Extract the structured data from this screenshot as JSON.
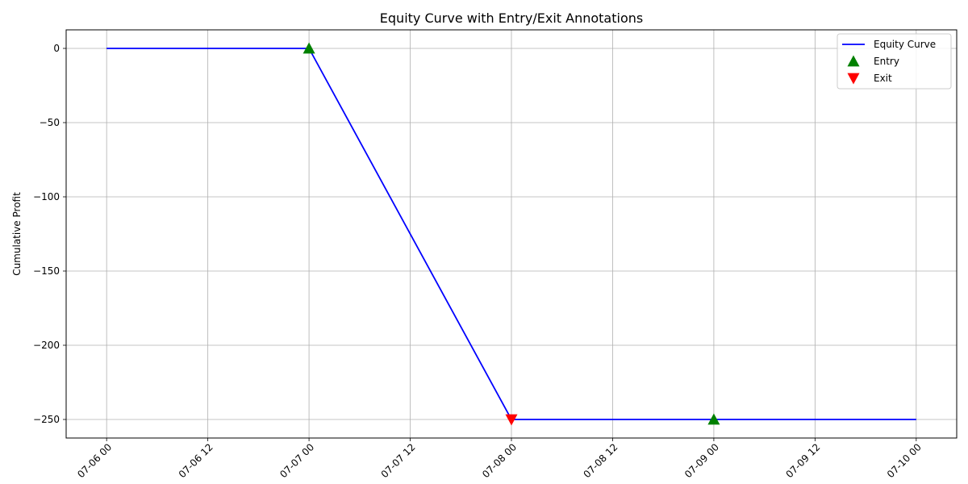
{
  "chart_data": {
    "type": "line",
    "title": "Equity Curve with Entry/Exit Annotations",
    "xlabel": "",
    "ylabel": "Cumulative Profit",
    "x_axis_type": "datetime",
    "xlim": [
      "2023-07-05T19:12",
      "2023-07-10T04:48"
    ],
    "ylim": [
      -262.5,
      12.5
    ],
    "x_ticks": [
      {
        "value": "2023-07-06T00:00",
        "label": "07-06 00"
      },
      {
        "value": "2023-07-06T12:00",
        "label": "07-06 12"
      },
      {
        "value": "2023-07-07T00:00",
        "label": "07-07 00"
      },
      {
        "value": "2023-07-07T12:00",
        "label": "07-07 12"
      },
      {
        "value": "2023-07-08T00:00",
        "label": "07-08 00"
      },
      {
        "value": "2023-07-08T12:00",
        "label": "07-08 12"
      },
      {
        "value": "2023-07-09T00:00",
        "label": "07-09 00"
      },
      {
        "value": "2023-07-09T12:00",
        "label": "07-09 12"
      },
      {
        "value": "2023-07-10T00:00",
        "label": "07-10 00"
      }
    ],
    "y_ticks": [
      {
        "value": 0,
        "label": "0"
      },
      {
        "value": -50,
        "label": "−50"
      },
      {
        "value": -100,
        "label": "−100"
      },
      {
        "value": -150,
        "label": "−150"
      },
      {
        "value": -200,
        "label": "−200"
      },
      {
        "value": -250,
        "label": "−250"
      }
    ],
    "grid": true,
    "legend_position": "top-right",
    "series": [
      {
        "name": "Equity Curve",
        "kind": "line",
        "color": "#0000ff",
        "points": [
          {
            "x": "2023-07-06T00:00",
            "y": 0
          },
          {
            "x": "2023-07-07T00:00",
            "y": 0
          },
          {
            "x": "2023-07-08T00:00",
            "y": -250
          },
          {
            "x": "2023-07-09T00:00",
            "y": -250
          },
          {
            "x": "2023-07-10T00:00",
            "y": -250
          }
        ]
      },
      {
        "name": "Entry",
        "kind": "marker",
        "marker": "triangle-up",
        "color": "#008000",
        "points": [
          {
            "x": "2023-07-07T00:00",
            "y": 0
          },
          {
            "x": "2023-07-09T00:00",
            "y": -250
          }
        ]
      },
      {
        "name": "Exit",
        "kind": "marker",
        "marker": "triangle-down",
        "color": "#ff0000",
        "points": [
          {
            "x": "2023-07-08T00:00",
            "y": -250
          }
        ]
      }
    ]
  }
}
